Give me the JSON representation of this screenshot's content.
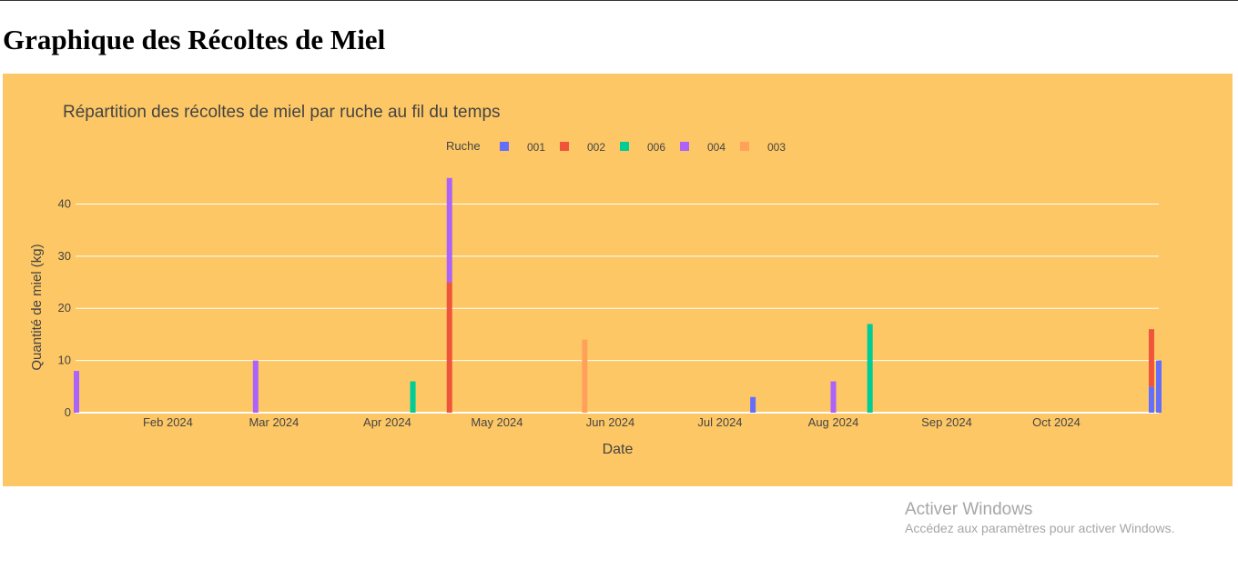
{
  "page": {
    "heading": "Graphique des Récoltes de Miel"
  },
  "watermark": {
    "title": "Activer Windows",
    "subtitle": "Accédez aux paramètres pour activer Windows."
  },
  "colors": {
    "panel_bg": "#fdc765",
    "grid": "#ffffff",
    "text": "#444444"
  },
  "chart_data": {
    "type": "bar",
    "barmode": "stack",
    "title": "Répartition des récoltes de miel par ruche au fil du temps",
    "xlabel": "Date",
    "ylabel": "Quantité de miel (kg)",
    "x_range": [
      "2024-01-07",
      "2024-10-29"
    ],
    "ylim": [
      0,
      47.4
    ],
    "y_ticks": [
      0,
      10,
      20,
      30,
      40
    ],
    "x_ticks": [
      {
        "date": "2024-02-01",
        "label": "Feb 2024"
      },
      {
        "date": "2024-03-01",
        "label": "Mar 2024"
      },
      {
        "date": "2024-04-01",
        "label": "Apr 2024"
      },
      {
        "date": "2024-05-01",
        "label": "May 2024"
      },
      {
        "date": "2024-06-01",
        "label": "Jun 2024"
      },
      {
        "date": "2024-07-01",
        "label": "Jul 2024"
      },
      {
        "date": "2024-08-01",
        "label": "Aug 2024"
      },
      {
        "date": "2024-09-01",
        "label": "Sep 2024"
      },
      {
        "date": "2024-10-01",
        "label": "Oct 2024"
      }
    ],
    "grid": true,
    "legend": {
      "title": "Ruche",
      "placement": "top-center",
      "orientation": "horizontal"
    },
    "series": [
      {
        "name": "001",
        "color": "#636efa",
        "points": [
          {
            "x": "2024-07-10",
            "y": 3
          },
          {
            "x": "2024-10-27",
            "y": 5
          },
          {
            "x": "2024-10-29",
            "y": 10
          }
        ]
      },
      {
        "name": "002",
        "color": "#ef553b",
        "points": [
          {
            "x": "2024-04-18",
            "y": 25
          },
          {
            "x": "2024-10-27",
            "y": 11
          }
        ]
      },
      {
        "name": "006",
        "color": "#00cc96",
        "points": [
          {
            "x": "2024-04-08",
            "y": 6
          },
          {
            "x": "2024-08-11",
            "y": 17
          }
        ]
      },
      {
        "name": "004",
        "color": "#ab63fa",
        "points": [
          {
            "x": "2024-01-07",
            "y": 8
          },
          {
            "x": "2024-02-25",
            "y": 10
          },
          {
            "x": "2024-04-18",
            "y": 20
          },
          {
            "x": "2024-08-01",
            "y": 6
          }
        ]
      },
      {
        "name": "003",
        "color": "#ffa15a",
        "points": [
          {
            "x": "2024-05-25",
            "y": 14
          }
        ]
      }
    ]
  }
}
